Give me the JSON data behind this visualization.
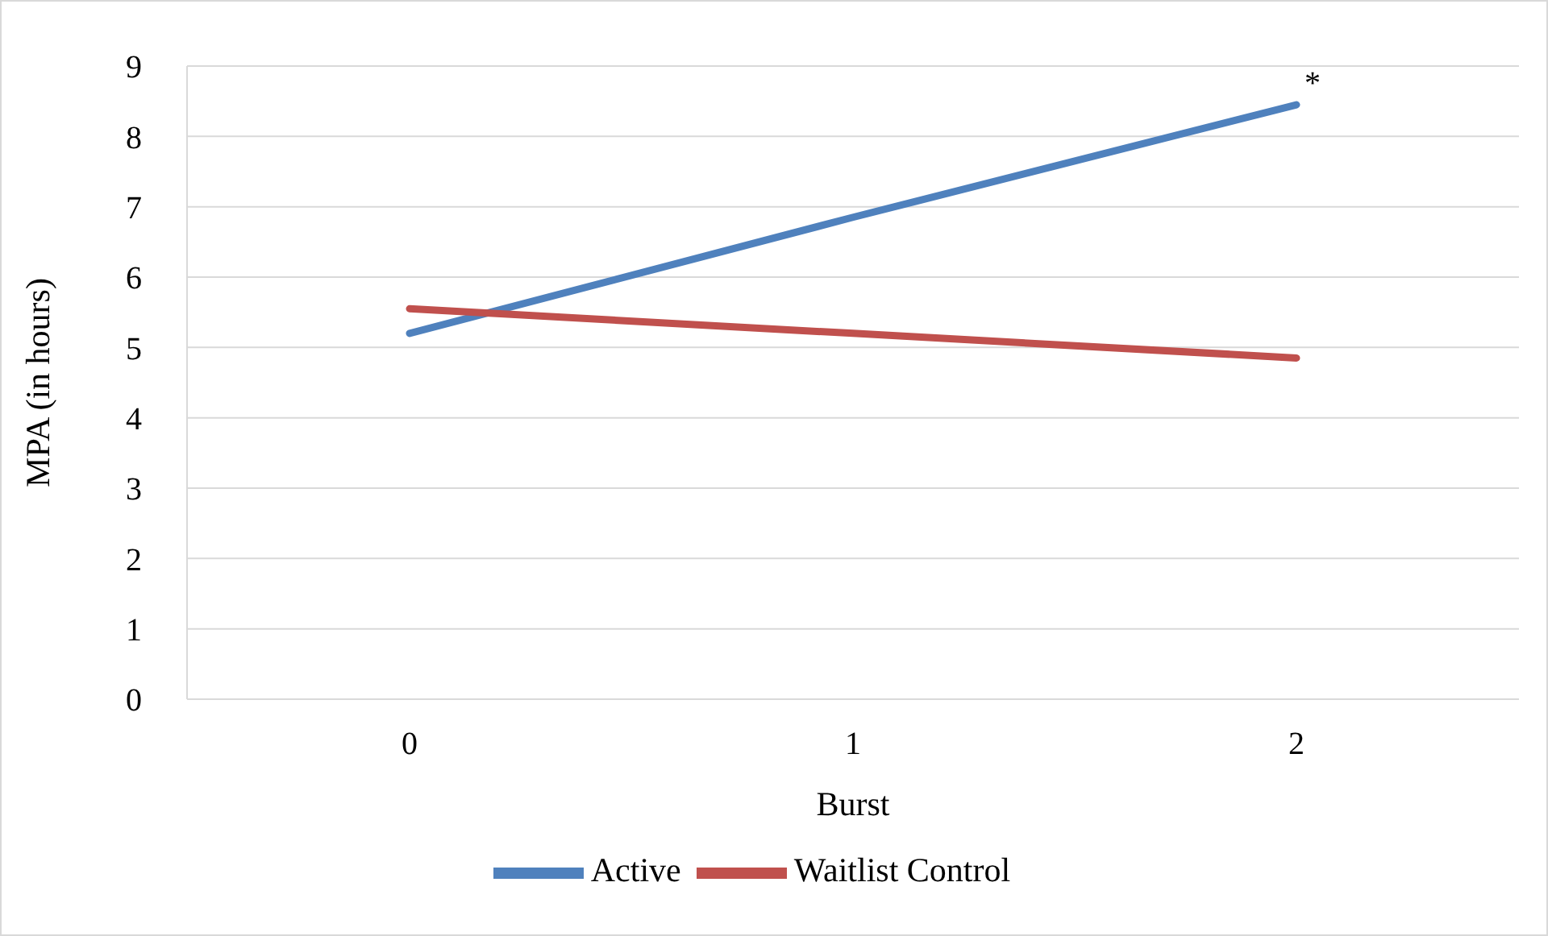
{
  "chart_data": {
    "type": "line",
    "xlabel": "Burst",
    "ylabel": "MPA (in hours)",
    "categories": [
      "0",
      "1",
      "2"
    ],
    "series": [
      {
        "name": "Active",
        "color": "#4f81bd",
        "values": [
          5.2,
          6.85,
          8.45
        ]
      },
      {
        "name": "Waitlist Control",
        "color": "#c0504d",
        "values": [
          5.55,
          5.2,
          4.85
        ]
      }
    ],
    "ylim": [
      0,
      9
    ],
    "yticks": [
      0,
      1,
      2,
      3,
      4,
      5,
      6,
      7,
      8,
      9
    ],
    "grid": "y",
    "legend": "bottom",
    "marker": "none",
    "line_style": "solid",
    "annotations": [
      {
        "text": "*",
        "x": "2",
        "y": 8.45
      }
    ]
  }
}
